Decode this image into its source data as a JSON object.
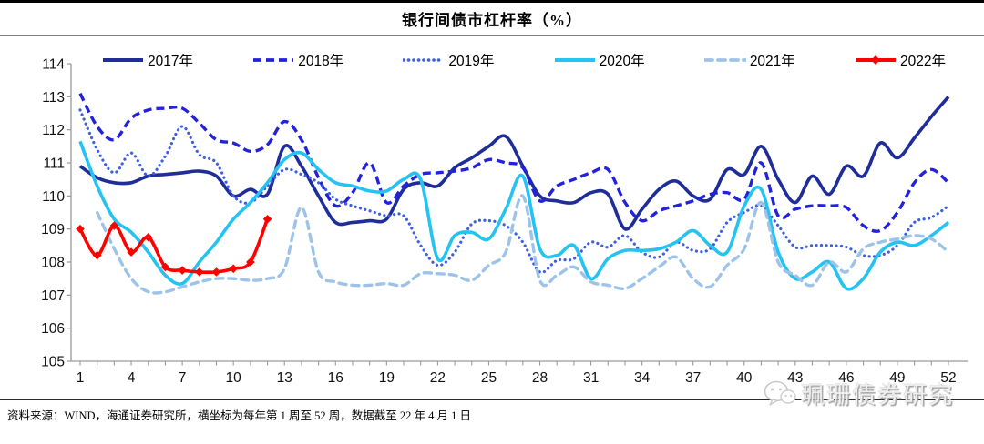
{
  "header": {
    "title": "银行间债市杠杆率（%）"
  },
  "footer": {
    "source": "资料来源：WIND，海通证券研究所，横坐标为每年第 1 周至 52 周，数据截至 22 年 4 月 1 日"
  },
  "watermark": {
    "text": "珮珊债券研究",
    "icon": "wechat-icon"
  },
  "chart_data": {
    "type": "line",
    "title": "银行间债市杠杆率（%）",
    "xlabel": "",
    "ylabel": "",
    "x_range": [
      1,
      52
    ],
    "x_tick_labels": [
      1,
      4,
      7,
      10,
      13,
      16,
      19,
      22,
      25,
      28,
      31,
      34,
      37,
      40,
      43,
      46,
      49,
      52
    ],
    "ylim": [
      105,
      114
    ],
    "y_ticks": [
      105,
      106,
      107,
      108,
      109,
      110,
      111,
      112,
      113,
      114
    ],
    "grid": false,
    "legend_position": "top",
    "series": [
      {
        "name": "2017年",
        "color": "#1f2d99",
        "line_style": "solid",
        "start_week": 1,
        "values": [
          110.9,
          110.55,
          110.4,
          110.4,
          110.6,
          110.65,
          110.7,
          110.75,
          110.6,
          110.0,
          110.2,
          110.05,
          111.5,
          110.9,
          110.0,
          109.2,
          109.2,
          109.25,
          109.3,
          110.2,
          110.4,
          110.3,
          110.85,
          111.15,
          111.5,
          111.8,
          110.9,
          110.0,
          109.85,
          109.8,
          110.1,
          110.05,
          109.0,
          109.6,
          110.2,
          110.45,
          110.0,
          109.9,
          110.8,
          110.65,
          111.5,
          110.5,
          109.8,
          110.6,
          110.05,
          110.9,
          110.6,
          111.6,
          111.15,
          111.75,
          112.4,
          113.0
        ]
      },
      {
        "name": "2018年",
        "color": "#2222dd",
        "line_style": "dashed",
        "start_week": 1,
        "values": [
          113.1,
          112.1,
          111.7,
          112.35,
          112.6,
          112.65,
          112.65,
          112.2,
          111.7,
          111.6,
          111.35,
          111.55,
          112.25,
          111.7,
          110.55,
          109.7,
          110.1,
          111.0,
          109.8,
          110.3,
          110.65,
          110.7,
          110.75,
          110.85,
          111.1,
          111.0,
          110.85,
          109.85,
          110.3,
          110.5,
          110.7,
          110.8,
          109.8,
          109.25,
          109.55,
          109.7,
          109.85,
          110.05,
          110.1,
          109.9,
          111.0,
          109.4,
          109.6,
          109.7,
          109.7,
          109.65,
          109.1,
          108.95,
          109.5,
          110.4,
          110.8,
          110.4
        ]
      },
      {
        "name": "2019年",
        "color": "#3d5fe0",
        "line_style": "dotted",
        "start_week": 1,
        "values": [
          112.6,
          111.4,
          110.7,
          111.3,
          110.6,
          111.2,
          112.1,
          111.25,
          111.0,
          110.0,
          109.8,
          110.3,
          110.8,
          110.65,
          110.4,
          109.9,
          109.7,
          109.55,
          109.4,
          109.4,
          108.5,
          107.9,
          108.3,
          109.15,
          109.25,
          109.1,
          108.6,
          107.7,
          108.05,
          108.1,
          108.6,
          108.45,
          108.8,
          108.3,
          108.15,
          108.6,
          108.35,
          108.4,
          109.2,
          109.5,
          109.7,
          109.1,
          108.45,
          108.5,
          108.5,
          108.45,
          108.2,
          108.2,
          108.5,
          109.2,
          109.35,
          109.7
        ]
      },
      {
        "name": "2020年",
        "color": "#25c3f2",
        "line_style": "solid",
        "start_week": 1,
        "values": [
          111.65,
          110.3,
          109.3,
          108.9,
          108.3,
          107.6,
          107.35,
          108.0,
          108.6,
          109.3,
          109.8,
          110.4,
          111.1,
          111.3,
          110.8,
          110.4,
          110.3,
          110.15,
          110.15,
          110.5,
          110.5,
          108.1,
          108.8,
          108.9,
          108.7,
          109.6,
          110.6,
          108.4,
          108.2,
          108.5,
          107.5,
          108.1,
          108.35,
          108.35,
          108.4,
          108.6,
          108.95,
          108.5,
          108.3,
          109.7,
          110.2,
          108.3,
          107.5,
          107.7,
          108.0,
          107.2,
          107.5,
          108.3,
          108.6,
          108.5,
          108.8,
          109.2
        ]
      },
      {
        "name": "2021年",
        "color": "#9dc3e8",
        "line_style": "light-dashed",
        "start_week": 2,
        "values": [
          109.5,
          108.4,
          107.5,
          107.1,
          107.1,
          107.25,
          107.4,
          107.5,
          107.5,
          107.45,
          107.5,
          107.8,
          109.65,
          107.7,
          107.4,
          107.3,
          107.3,
          107.35,
          107.3,
          107.65,
          107.65,
          107.6,
          107.45,
          107.9,
          108.3,
          110.0,
          107.45,
          107.6,
          107.85,
          107.4,
          107.3,
          107.2,
          107.5,
          107.85,
          108.15,
          107.5,
          107.25,
          107.9,
          108.4,
          109.8,
          108.0,
          107.6,
          107.3,
          108.0,
          107.7,
          108.4,
          108.6,
          108.7,
          108.8,
          108.7,
          108.3
        ]
      },
      {
        "name": "2022年",
        "color": "#fe0000",
        "line_style": "solid-diamond",
        "start_week": 1,
        "values": [
          109.0,
          108.2,
          109.1,
          108.3,
          108.75,
          107.85,
          107.75,
          107.7,
          107.7,
          107.8,
          108.0,
          109.3
        ]
      }
    ]
  }
}
